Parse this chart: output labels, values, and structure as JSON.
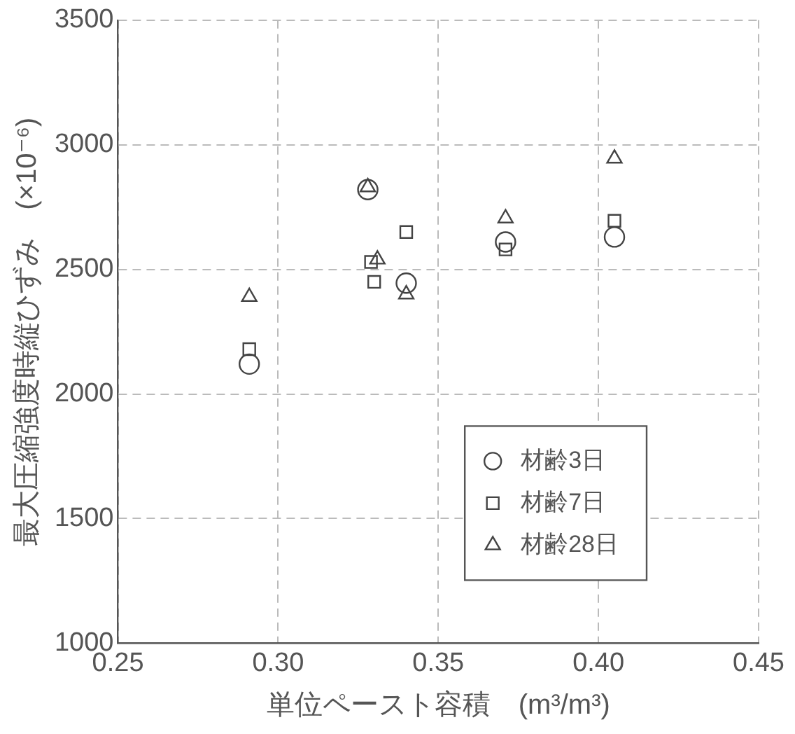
{
  "chart_data": {
    "type": "scatter",
    "xlabel": "単位ペースト容積　(m³/m³)",
    "ylabel": "最大圧縮強度時縦ひずみ　(×10⁻⁶)",
    "xlim": [
      0.25,
      0.45
    ],
    "xticks": [
      {
        "value": 0.25,
        "label": "0.25"
      },
      {
        "value": 0.3,
        "label": "0.30"
      },
      {
        "value": 0.35,
        "label": "0.35"
      },
      {
        "value": 0.4,
        "label": "0.40"
      },
      {
        "value": 0.45,
        "label": "0.45"
      }
    ],
    "ylim": [
      1000,
      3500
    ],
    "yticks": [
      1000,
      1500,
      2000,
      2500,
      3000,
      3500
    ],
    "grid": true,
    "legend": "bottom right",
    "series": [
      {
        "name": "材齢3日",
        "color": "#444444",
        "marker": "circle",
        "x": [
          0.291,
          0.328,
          0.34,
          0.371,
          0.405
        ],
        "values": [
          2120,
          2820,
          2445,
          2610,
          2630
        ]
      },
      {
        "name": "材齢7日",
        "color": "#444444",
        "marker": "square",
        "x": [
          0.291,
          0.329,
          0.33,
          0.34,
          0.371,
          0.405
        ],
        "values": [
          2180,
          2530,
          2450,
          2650,
          2580,
          2695
        ]
      },
      {
        "name": "材齢28日",
        "color": "#444444",
        "marker": "triangle",
        "x": [
          0.291,
          0.328,
          0.331,
          0.34,
          0.371,
          0.405
        ],
        "values": [
          2390,
          2830,
          2540,
          2400,
          2705,
          2945
        ]
      }
    ]
  }
}
